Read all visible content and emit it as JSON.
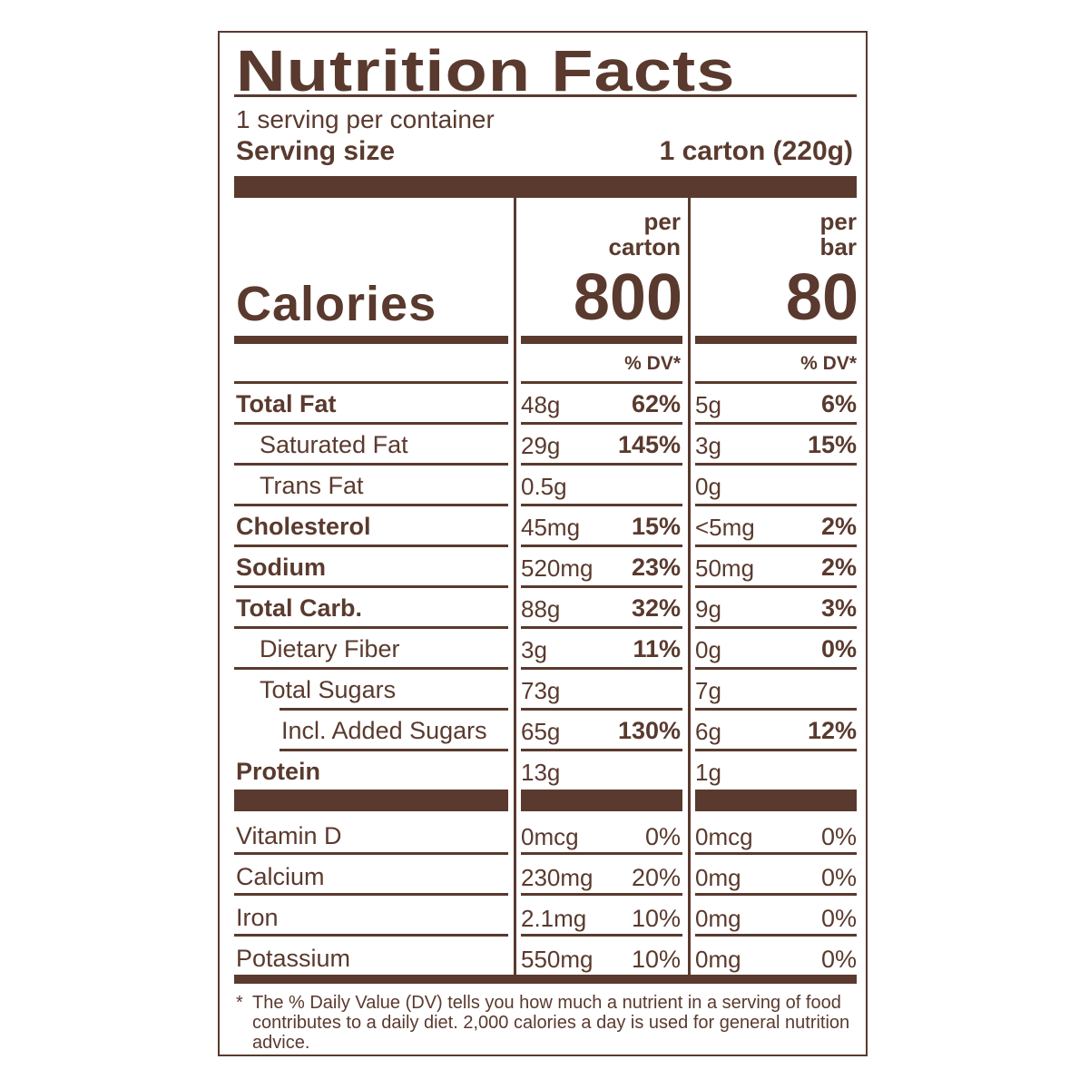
{
  "title": "Nutrition Facts",
  "servings": "1 serving per container",
  "serving_size_label": "Serving size",
  "serving_size_value": "1 carton (220g)",
  "calories_label": "Calories",
  "columns": [
    {
      "header_line1": "per",
      "header_line2": "carton",
      "calories": "800",
      "dv_header": "% DV*"
    },
    {
      "header_line1": "per",
      "header_line2": "bar",
      "calories": "80",
      "dv_header": "% DV*"
    }
  ],
  "nutrients": [
    {
      "name": "Total Fat",
      "bold": true,
      "indent": 0,
      "values": [
        {
          "amount": "48g",
          "dv": "62%"
        },
        {
          "amount": "5g",
          "dv": "6%"
        }
      ]
    },
    {
      "name": "Saturated Fat",
      "bold": false,
      "indent": 1,
      "values": [
        {
          "amount": "29g",
          "dv": "145%"
        },
        {
          "amount": "3g",
          "dv": "15%"
        }
      ]
    },
    {
      "name": "Trans Fat",
      "bold": false,
      "indent": 1,
      "values": [
        {
          "amount": "0.5g",
          "dv": ""
        },
        {
          "amount": "0g",
          "dv": ""
        }
      ]
    },
    {
      "name": "Cholesterol",
      "bold": true,
      "indent": 0,
      "values": [
        {
          "amount": "45mg",
          "dv": "15%"
        },
        {
          "amount": "<5mg",
          "dv": "2%"
        }
      ]
    },
    {
      "name": "Sodium",
      "bold": true,
      "indent": 0,
      "values": [
        {
          "amount": "520mg",
          "dv": "23%"
        },
        {
          "amount": "50mg",
          "dv": "2%"
        }
      ]
    },
    {
      "name": "Total Carb.",
      "bold": true,
      "indent": 0,
      "values": [
        {
          "amount": "88g",
          "dv": "32%"
        },
        {
          "amount": "9g",
          "dv": "3%"
        }
      ]
    },
    {
      "name": "Dietary Fiber",
      "bold": false,
      "indent": 1,
      "values": [
        {
          "amount": "3g",
          "dv": "11%"
        },
        {
          "amount": "0g",
          "dv": "0%"
        }
      ]
    },
    {
      "name": "Total Sugars",
      "bold": false,
      "indent": 1,
      "values": [
        {
          "amount": "73g",
          "dv": ""
        },
        {
          "amount": "7g",
          "dv": ""
        }
      ]
    },
    {
      "name": "Incl. Added Sugars",
      "bold": false,
      "indent": 2,
      "values": [
        {
          "amount": "65g",
          "dv": "130%"
        },
        {
          "amount": "6g",
          "dv": "12%"
        }
      ]
    },
    {
      "name": "Protein",
      "bold": true,
      "indent": 0,
      "values": [
        {
          "amount": "13g",
          "dv": ""
        },
        {
          "amount": "1g",
          "dv": ""
        }
      ]
    }
  ],
  "vitamins": [
    {
      "name": "Vitamin D",
      "values": [
        {
          "amount": "0mcg",
          "dv": "0%"
        },
        {
          "amount": "0mcg",
          "dv": "0%"
        }
      ]
    },
    {
      "name": "Calcium",
      "values": [
        {
          "amount": "230mg",
          "dv": "20%"
        },
        {
          "amount": "0mg",
          "dv": "0%"
        }
      ]
    },
    {
      "name": "Iron",
      "values": [
        {
          "amount": "2.1mg",
          "dv": "10%"
        },
        {
          "amount": "0mg",
          "dv": "0%"
        }
      ]
    },
    {
      "name": "Potassium",
      "values": [
        {
          "amount": "550mg",
          "dv": "10%"
        },
        {
          "amount": "0mg",
          "dv": "0%"
        }
      ]
    }
  ],
  "footnote_star": "*",
  "footnote": "The % Daily Value (DV) tells you how much a nutrient in a serving of food contributes to a daily diet. 2,000 calories a day is used for general nutrition advice.",
  "colors": {
    "ink": "#5a3a2e",
    "background": "#ffffff"
  }
}
